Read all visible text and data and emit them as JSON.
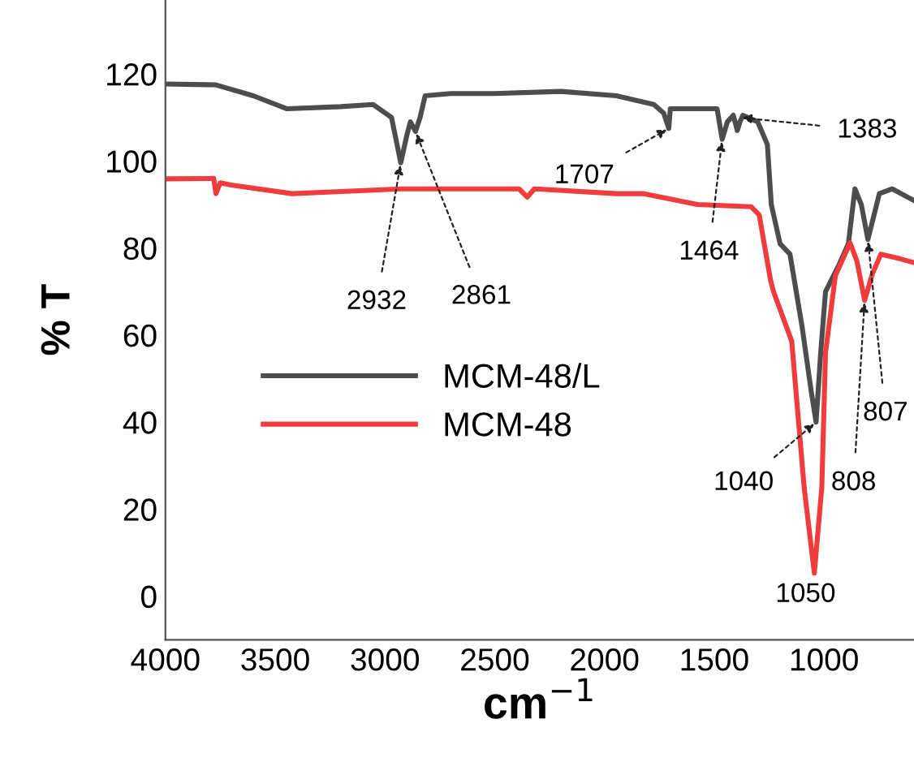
{
  "chart_data": {
    "type": "line",
    "xlabel": "cm$^{−1}$",
    "ylabel": "% T",
    "xlim": [
      4000,
      590
    ],
    "xticks": [
      4000,
      3500,
      3000,
      2500,
      2000,
      1500,
      1000
    ],
    "ylim": [
      -10,
      137
    ],
    "yticks": [
      0,
      20,
      40,
      60,
      80,
      100,
      120
    ],
    "grid": false,
    "legend": "left",
    "marker": "none",
    "line_style": "solid",
    "series": [
      {
        "name": "MCM-48/L",
        "color": "#4d4d4d",
        "x": [
          4000,
          3770,
          3600,
          3446,
          3200,
          3054,
          2970,
          2928,
          2900,
          2884,
          2861,
          2840,
          2817,
          2700,
          2500,
          2200,
          1945,
          1775,
          1730,
          1707,
          1700,
          1600,
          1487,
          1464,
          1440,
          1413,
          1395,
          1383,
          1370,
          1302,
          1258,
          1240,
          1200,
          1155,
          1100,
          1058,
          1036,
          1015,
          993,
          933,
          889,
          859,
          830,
          800,
          770,
          748,
          689,
          593
        ],
        "values": [
          117.7,
          117.5,
          115,
          112,
          112.5,
          113,
          110,
          99.6,
          106,
          109,
          106.8,
          110,
          115,
          115.5,
          115.5,
          116,
          115,
          113,
          111,
          107.5,
          112,
          112,
          112,
          105,
          109,
          110.5,
          107,
          109,
          110.5,
          109,
          103.8,
          90,
          81,
          78.6,
          62,
          47,
          40,
          56,
          70,
          76,
          81,
          93.6,
          90,
          82,
          88,
          92.5,
          93.6,
          91
        ]
      },
      {
        "name": "MCM-48",
        "color": "#f03c3c",
        "x": [
          4000,
          3780,
          3770,
          3750,
          3700,
          3424,
          3200,
          2928,
          2600,
          2389,
          2352,
          2320,
          2315,
          1945,
          1820,
          1576,
          1332,
          1295,
          1243,
          1230,
          1147,
          1090,
          1044,
          1010,
          993,
          948,
          881,
          850,
          815,
          780,
          741,
          650,
          593
        ],
        "values": [
          95.9,
          96,
          92.5,
          95,
          94.5,
          92.5,
          93,
          93.6,
          93.6,
          93.6,
          91.7,
          93.6,
          93.6,
          92.5,
          92.5,
          90,
          89.5,
          87.6,
          72.5,
          70,
          58.6,
          24.8,
          5.3,
          25,
          56,
          73.7,
          81.2,
          77,
          68,
          74,
          78.6,
          77.5,
          76.7
        ]
      }
    ],
    "annotations": [
      {
        "text": "2932",
        "x": 2928,
        "y": 99.6
      },
      {
        "text": "2861",
        "x": 2861,
        "y": 106.8
      },
      {
        "text": "1707",
        "x": 1707,
        "y": 107.5
      },
      {
        "text": "1464",
        "x": 1464,
        "y": 105
      },
      {
        "text": "1383",
        "x": 1383,
        "y": 110
      },
      {
        "text": "1040",
        "x": 1036,
        "y": 40
      },
      {
        "text": "808",
        "x": 815,
        "y": 68
      },
      {
        "text": "807",
        "x": 800,
        "y": 82
      },
      {
        "text": "1050",
        "x": 1044,
        "y": 5.3
      }
    ]
  }
}
